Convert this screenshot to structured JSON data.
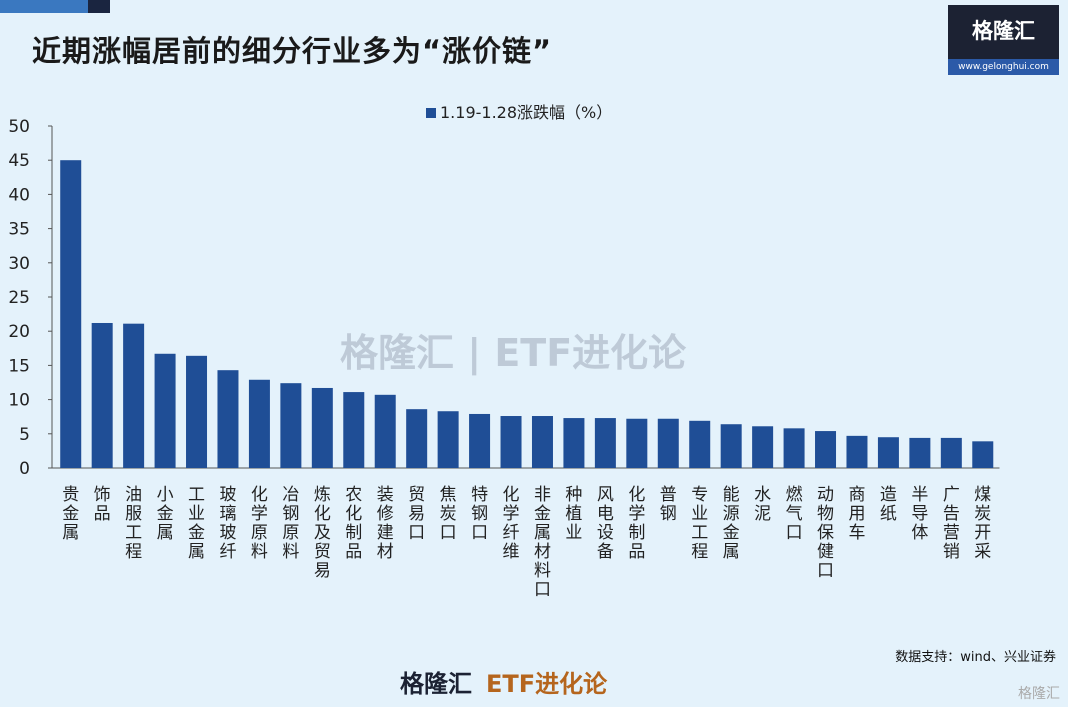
{
  "header": {
    "title": "近期涨幅居前的细分行业多为“涨价链”",
    "logo_text": "格隆汇",
    "logo_url": "www.gelonghui.com"
  },
  "watermark": "格隆汇 | ETF进化论",
  "source": "数据支持：wind、兴业证券",
  "footer": {
    "brand": "格隆汇",
    "sub": "ETF进化论"
  },
  "corner": "格隆汇",
  "colors": {
    "bar": "#1f4e96"
  },
  "chart_data": {
    "type": "bar",
    "legend": "1.19-1.28涨跌幅（%）",
    "legend_position": "top-center",
    "categories": [
      "贵金属",
      "饰品",
      "油服工程",
      "小金属",
      "工业金属",
      "玻璃玻纤",
      "化学原料",
      "冶钢原料",
      "炼化及贸易",
      "农化制品",
      "装修建材",
      "贸易口",
      "焦炭口",
      "特钢口",
      "化学纤维",
      "非金属材料口",
      "种植业",
      "风电设备",
      "化学制品",
      "普钢",
      "专业工程",
      "能源金属",
      "水泥",
      "燃气口",
      "动物保健口",
      "商用车",
      "造纸",
      "半导体",
      "广告营销",
      "煤炭开采"
    ],
    "values": [
      45.0,
      21.2,
      21.1,
      16.7,
      16.4,
      14.3,
      12.9,
      12.4,
      11.7,
      11.1,
      10.7,
      8.6,
      8.3,
      7.9,
      7.6,
      7.6,
      7.3,
      7.3,
      7.2,
      7.2,
      6.9,
      6.4,
      6.1,
      5.8,
      5.4,
      4.7,
      4.5,
      4.4,
      4.4,
      3.9
    ],
    "ylim": [
      0,
      50
    ],
    "yticks": [
      0,
      5,
      10,
      15,
      20,
      25,
      30,
      35,
      40,
      45,
      50
    ],
    "grid": false
  }
}
